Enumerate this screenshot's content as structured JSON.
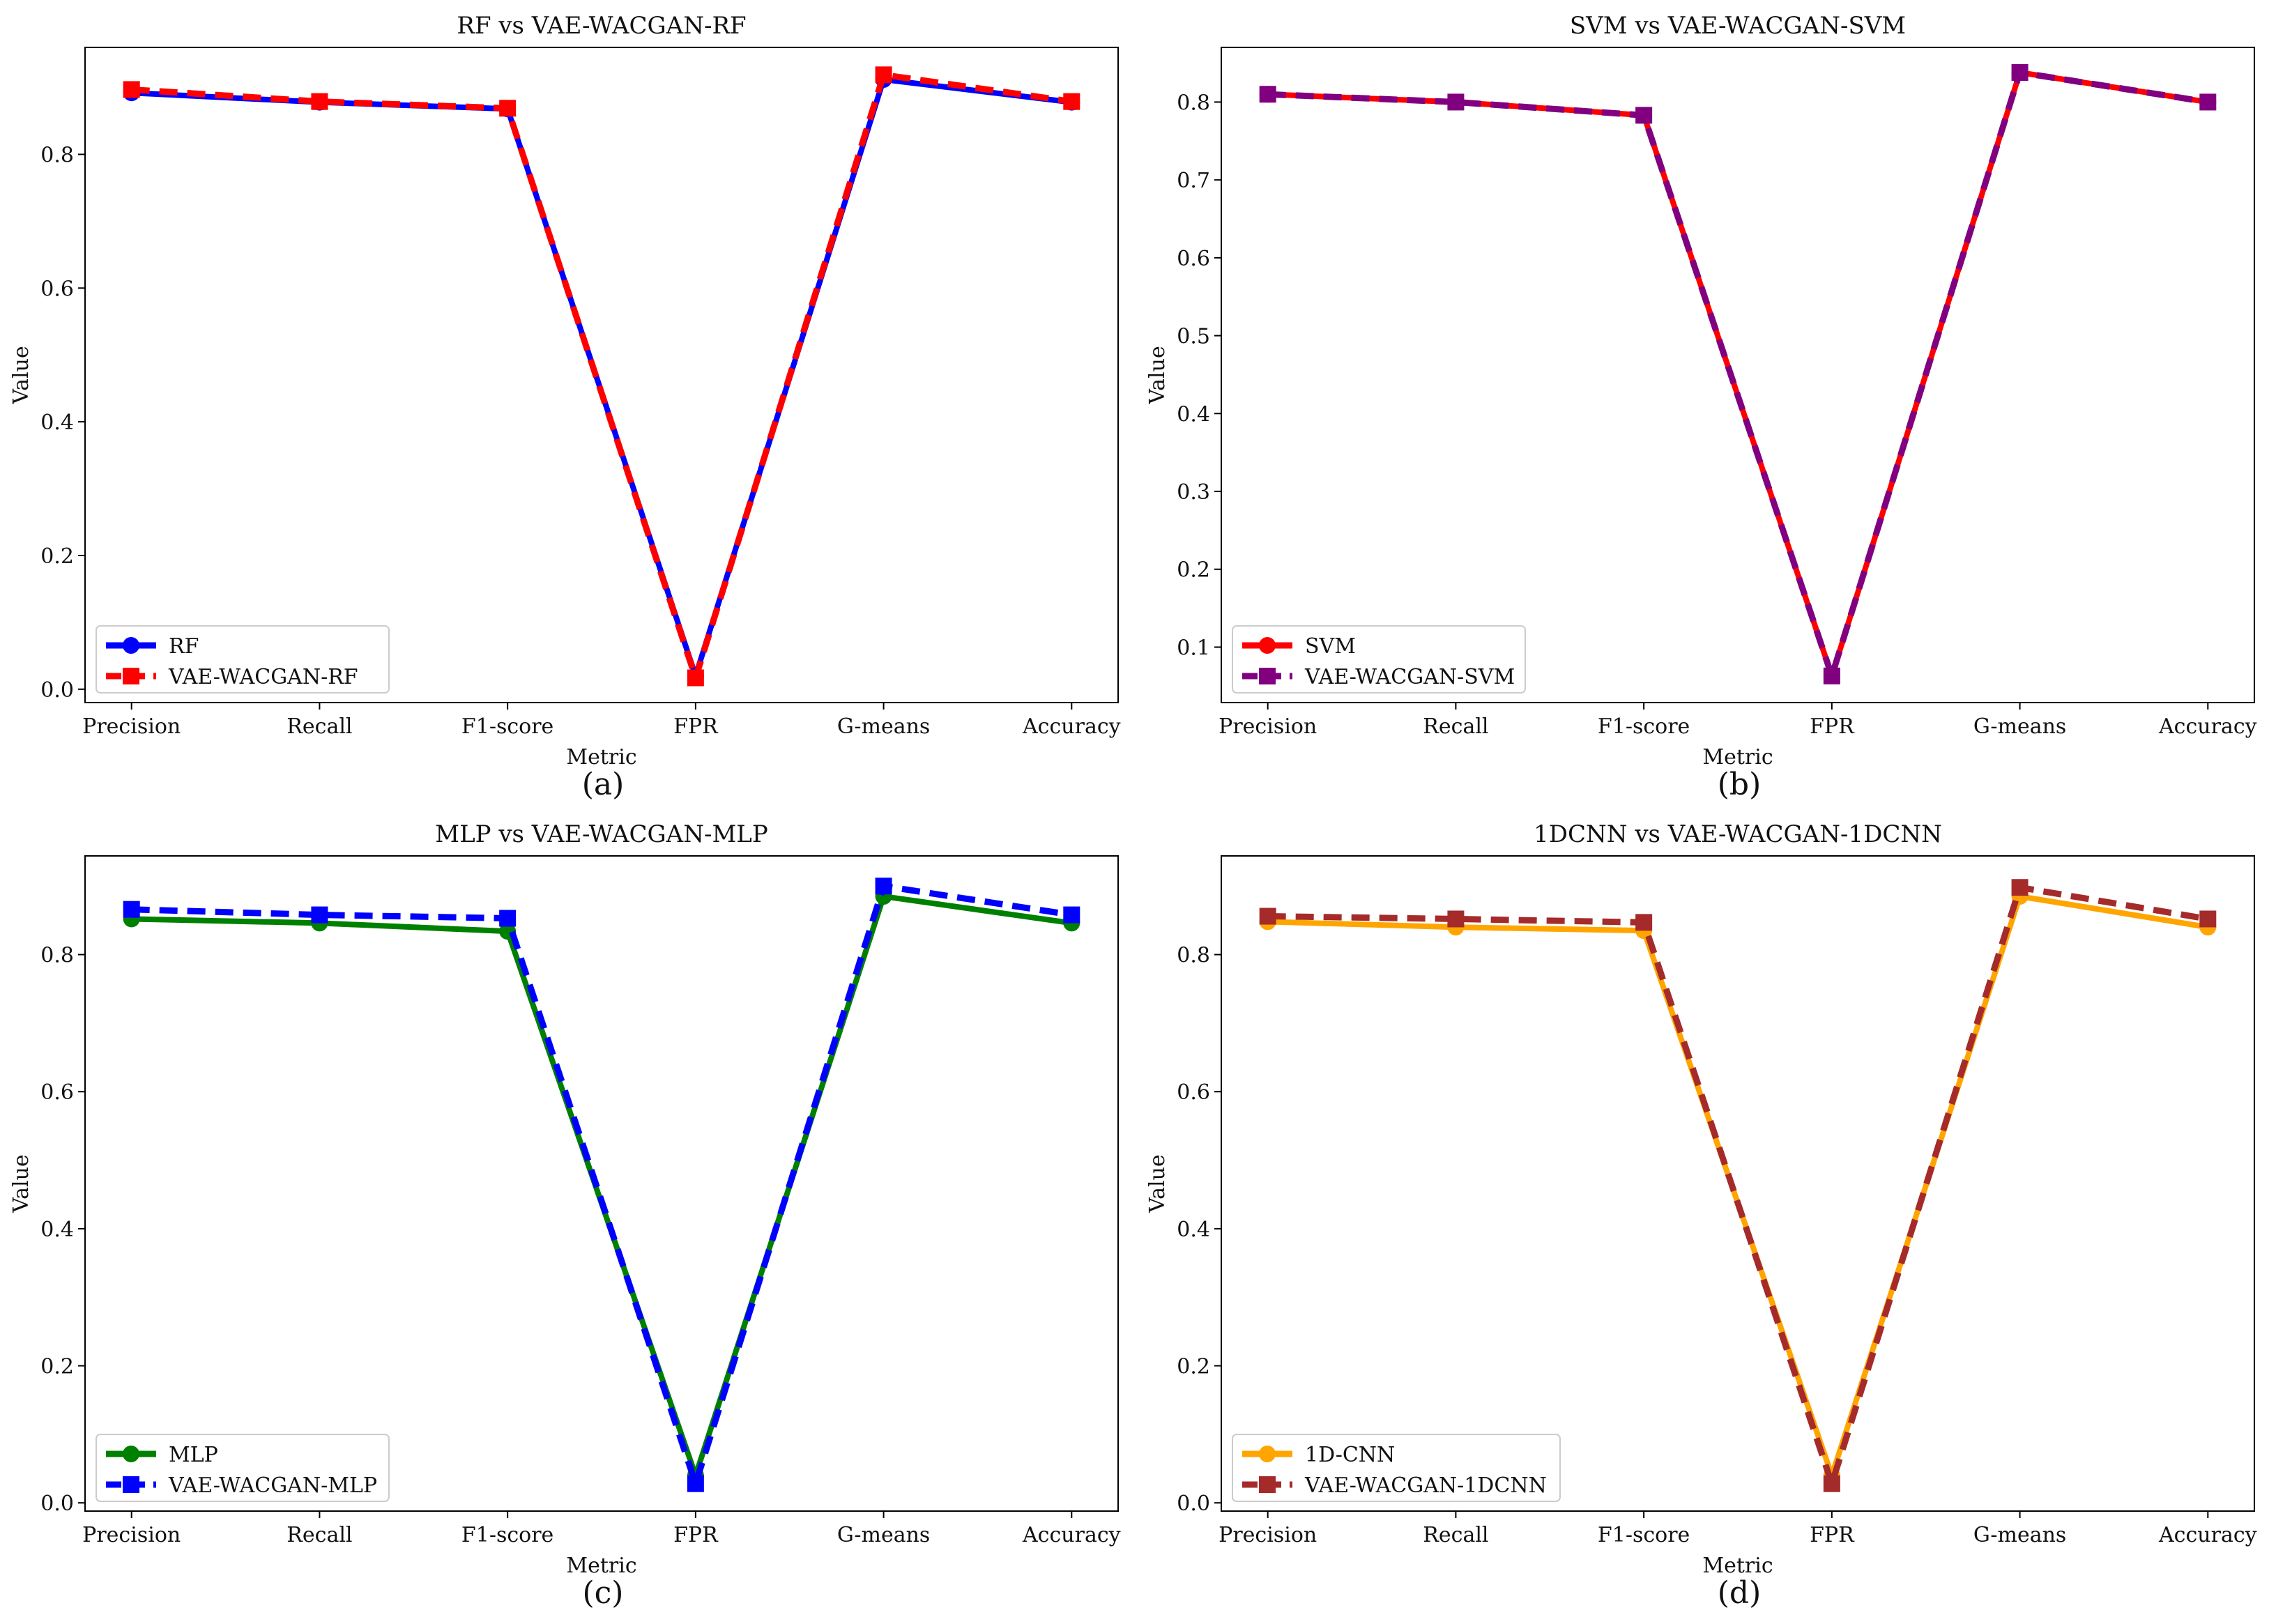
{
  "figure": {
    "captions": [
      "(a)",
      "(b)",
      "(c)",
      "(d)"
    ]
  },
  "chart_data": [
    {
      "type": "line",
      "title": "RF vs VAE-WACGAN-RF",
      "xlabel": "Metric",
      "ylabel": "Value",
      "categories": [
        "Precision",
        "Recall",
        "F1-score",
        "FPR",
        "G-means",
        "Accuracy"
      ],
      "ylim": [
        -0.02,
        0.96
      ],
      "yticks": [
        0.0,
        0.2,
        0.4,
        0.6,
        0.8
      ],
      "ytick_labels": [
        "0.0",
        "0.2",
        "0.4",
        "0.6",
        "0.8"
      ],
      "legend_position": "lower-left",
      "series": [
        {
          "name": "RF",
          "values": [
            0.892,
            0.878,
            0.868,
            0.02,
            0.912,
            0.878
          ],
          "color": "#0000ff",
          "dashed": false,
          "marker": "circle"
        },
        {
          "name": "VAE-WACGAN-RF",
          "values": [
            0.897,
            0.879,
            0.869,
            0.017,
            0.919,
            0.879
          ],
          "color": "#ff0000",
          "dashed": true,
          "marker": "square"
        }
      ]
    },
    {
      "type": "line",
      "title": "SVM vs VAE-WACGAN-SVM",
      "xlabel": "Metric",
      "ylabel": "Value",
      "categories": [
        "Precision",
        "Recall",
        "F1-score",
        "FPR",
        "G-means",
        "Accuracy"
      ],
      "ylim": [
        0.0288,
        0.8702
      ],
      "yticks": [
        0.1,
        0.2,
        0.3,
        0.4,
        0.5,
        0.6,
        0.7,
        0.8
      ],
      "ytick_labels": [
        "0.1",
        "0.2",
        "0.3",
        "0.4",
        "0.5",
        "0.6",
        "0.7",
        "0.8"
      ],
      "legend_position": "lower-left",
      "series": [
        {
          "name": "SVM",
          "values": [
            0.81,
            0.8,
            0.783,
            0.063,
            0.838,
            0.8
          ],
          "color": "#ff0000",
          "dashed": false,
          "marker": "circle"
        },
        {
          "name": "VAE-WACGAN-SVM",
          "values": [
            0.81,
            0.8,
            0.783,
            0.063,
            0.838,
            0.8
          ],
          "color": "#800080",
          "dashed": true,
          "marker": "square"
        }
      ]
    },
    {
      "type": "line",
      "title": "MLP vs VAE-WACGAN-MLP",
      "xlabel": "Metric",
      "ylabel": "Value",
      "categories": [
        "Precision",
        "Recall",
        "F1-score",
        "FPR",
        "G-means",
        "Accuracy"
      ],
      "ylim": [
        -0.012,
        0.944
      ],
      "yticks": [
        0.0,
        0.2,
        0.4,
        0.6,
        0.8
      ],
      "ytick_labels": [
        "0.0",
        "0.2",
        "0.4",
        "0.6",
        "0.8"
      ],
      "legend_position": "lower-left",
      "series": [
        {
          "name": "MLP",
          "values": [
            0.852,
            0.846,
            0.834,
            0.04,
            0.885,
            0.846
          ],
          "color": "#008000",
          "dashed": false,
          "marker": "circle"
        },
        {
          "name": "VAE-WACGAN-MLP",
          "values": [
            0.866,
            0.858,
            0.853,
            0.028,
            0.9,
            0.858
          ],
          "color": "#0000ff",
          "dashed": true,
          "marker": "square"
        }
      ]
    },
    {
      "type": "line",
      "title": "1DCNN vs VAE-WACGAN-1DCNN",
      "xlabel": "Metric",
      "ylabel": "Value",
      "categories": [
        "Precision",
        "Recall",
        "F1-score",
        "FPR",
        "G-means",
        "Accuracy"
      ],
      "ylim": [
        -0.012,
        0.944
      ],
      "yticks": [
        0.0,
        0.2,
        0.4,
        0.6,
        0.8
      ],
      "ytick_labels": [
        "0.0",
        "0.2",
        "0.4",
        "0.6",
        "0.8"
      ],
      "legend_position": "lower-left",
      "series": [
        {
          "name": "1D-CNN",
          "values": [
            0.848,
            0.84,
            0.835,
            0.04,
            0.885,
            0.84
          ],
          "color": "#ffa500",
          "dashed": false,
          "marker": "circle"
        },
        {
          "name": "VAE-WACGAN-1DCNN",
          "values": [
            0.856,
            0.852,
            0.847,
            0.028,
            0.898,
            0.852
          ],
          "color": "#a52a2a",
          "dashed": true,
          "marker": "square"
        }
      ]
    }
  ]
}
